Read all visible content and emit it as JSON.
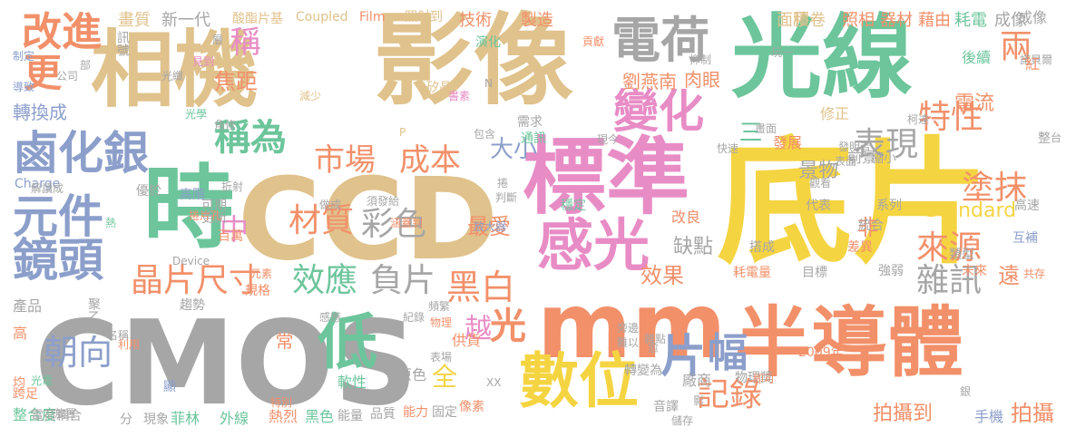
{
  "palette": {
    "tan": "#e0c28c",
    "green": "#6cc59b",
    "pink": "#e88cc6",
    "grey": "#a6a6a6",
    "blue": "#8c9fcb",
    "orange": "#f2906a",
    "yellow": "#f5d442",
    "lime": "#a8d85a"
  },
  "words": [
    "CMOS",
    "底片",
    "影像",
    "CCD",
    "光線",
    "相機",
    "標準",
    "mm",
    "半導體",
    "時",
    "數位",
    "鏡頭",
    "鹵化銀",
    "電荷",
    "感光",
    "元件",
    "變化",
    "改進",
    "稱為",
    "低",
    "市場",
    "成本",
    "晶片尺寸",
    "效應",
    "負片",
    "黑白",
    "彩色",
    "材質",
    "朝向",
    "表現",
    "特性",
    "兩",
    "來源",
    "更",
    "片",
    "幅",
    "記錄",
    "塗抹",
    "雜訊",
    "缺點",
    "光",
    "中",
    "焦距",
    "稱",
    "轉換成",
    "大小",
    "三",
    "景物",
    "劉燕南",
    "肉眼",
    "電流",
    "Standard",
    "效果",
    "拍攝到",
    "拍攝",
    "遠",
    "越",
    "最愛",
    "全",
    "非",
    "畫質",
    "新一代",
    "酸酯片基",
    "Coupled",
    "Film",
    "照射到",
    "技術",
    "製造",
    "面積",
    "膠卷",
    "照相",
    "器材",
    "藉由",
    "耗電",
    "成像",
    "訊號",
    "演化",
    "Charge",
    "Device",
    "發展",
    "修正",
    "後續",
    "優於",
    "高階",
    "通訊",
    "需求",
    "矽晶",
    "可期",
    "更新",
    "百萬",
    "規格",
    "趨勢",
    "聚乙",
    "產品",
    "跨足",
    "整合度",
    "電荷耦合",
    "分",
    "現象",
    "菲林",
    "外線",
    "熱烈",
    "黑色",
    "能量",
    "品質",
    "能力",
    "固定",
    "像素",
    "儲存",
    "手機",
    "音譯",
    "轉變為",
    "廠商",
    "物理獎",
    "2009年",
    "目標",
    "耗電量",
    "強弱",
    "未來",
    "代表",
    "系列",
    "統合",
    "差異",
    "類型",
    "高速",
    "互補",
    "共存",
    "諾貝爾",
    "成像",
    "紅",
    "制定",
    "導致",
    "光電",
    "均",
    "高",
    "X",
    "XX",
    "顯",
    "特別",
    "常",
    "軟性",
    "原色",
    "供貨",
    "改良",
    "穩定",
    "放大器",
    "涵蓋到",
    "做成",
    "捲片孔",
    "元素",
    "前景",
    "表面",
    "縮小",
    "觀看",
    "搭成",
    "判斷",
    "現今",
    "包含",
    "書素",
    "貢獻",
    "光纖",
    "公司",
    "部",
    "放置",
    "名稱",
    "利用",
    "物理",
    "旁邊",
    "難以",
    "愈",
    "雜點",
    "即可",
    "玩一",
    "發明者",
    "抑制",
    "快速",
    "畫面",
    "柯達",
    "影",
    "銀",
    "頻繁",
    "紀錄",
    "感應",
    "表場",
    "減少",
    "層",
    "見到",
    "光學",
    "角修",
    "解讀成",
    "熱",
    "折射",
    "須發給",
    "整",
    "台",
    "P",
    "N",
    "捲"
  ]
}
